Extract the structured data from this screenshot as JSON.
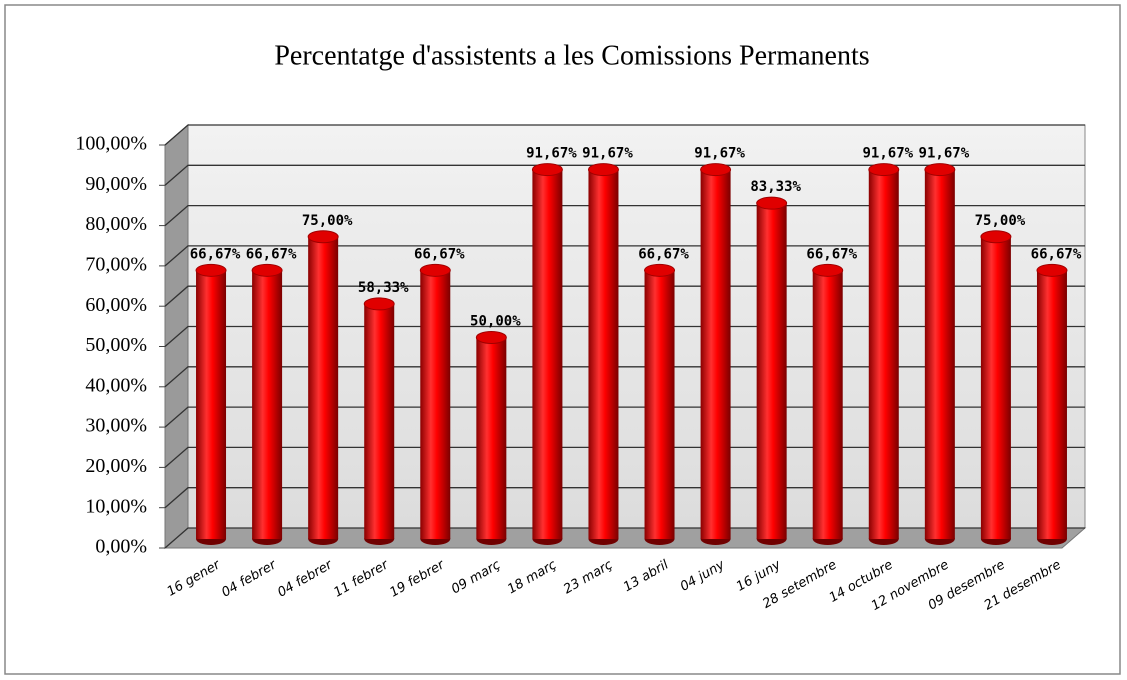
{
  "chart_data": {
    "type": "bar3d",
    "title": "Percentatge d'assistents a les Comissions Permanents",
    "categories": [
      "16 gener",
      "04 febrer",
      "04 febrer",
      "11 febrer",
      "19 febrer",
      "09 març",
      "18 març",
      "23 març",
      "13 abril",
      "04 juny",
      "16 juny",
      "28 setembre",
      "14 octubre",
      "12 novembre",
      "09 desembre",
      "21 desembre"
    ],
    "values": [
      66.67,
      66.67,
      75.0,
      58.33,
      66.67,
      50.0,
      91.67,
      91.67,
      66.67,
      91.67,
      83.33,
      66.67,
      91.67,
      91.67,
      75.0,
      66.67
    ],
    "value_labels": [
      "66,67%",
      "66,67%",
      "75,00%",
      "58,33%",
      "66,67%",
      "50,00%",
      "91,67%",
      "91,67%",
      "66,67%",
      "91,67%",
      "83,33%",
      "66,67%",
      "91,67%",
      "91,67%",
      "75,00%",
      "66,67%"
    ],
    "color": "#ff0000",
    "ylim": [
      0,
      100
    ],
    "yticks": [
      {
        "value": 0,
        "label": "0,00%"
      },
      {
        "value": 10,
        "label": "10,00%"
      },
      {
        "value": 20,
        "label": "20,00%"
      },
      {
        "value": 30,
        "label": "30,00%"
      },
      {
        "value": 40,
        "label": "40,00%"
      },
      {
        "value": 50,
        "label": "50,00%"
      },
      {
        "value": 60,
        "label": "60,00%"
      },
      {
        "value": 70,
        "label": "70,00%"
      },
      {
        "value": 80,
        "label": "80,00%"
      },
      {
        "value": 90,
        "label": "90,00%"
      },
      {
        "value": 100,
        "label": "100,00%"
      }
    ],
    "grid": true
  }
}
